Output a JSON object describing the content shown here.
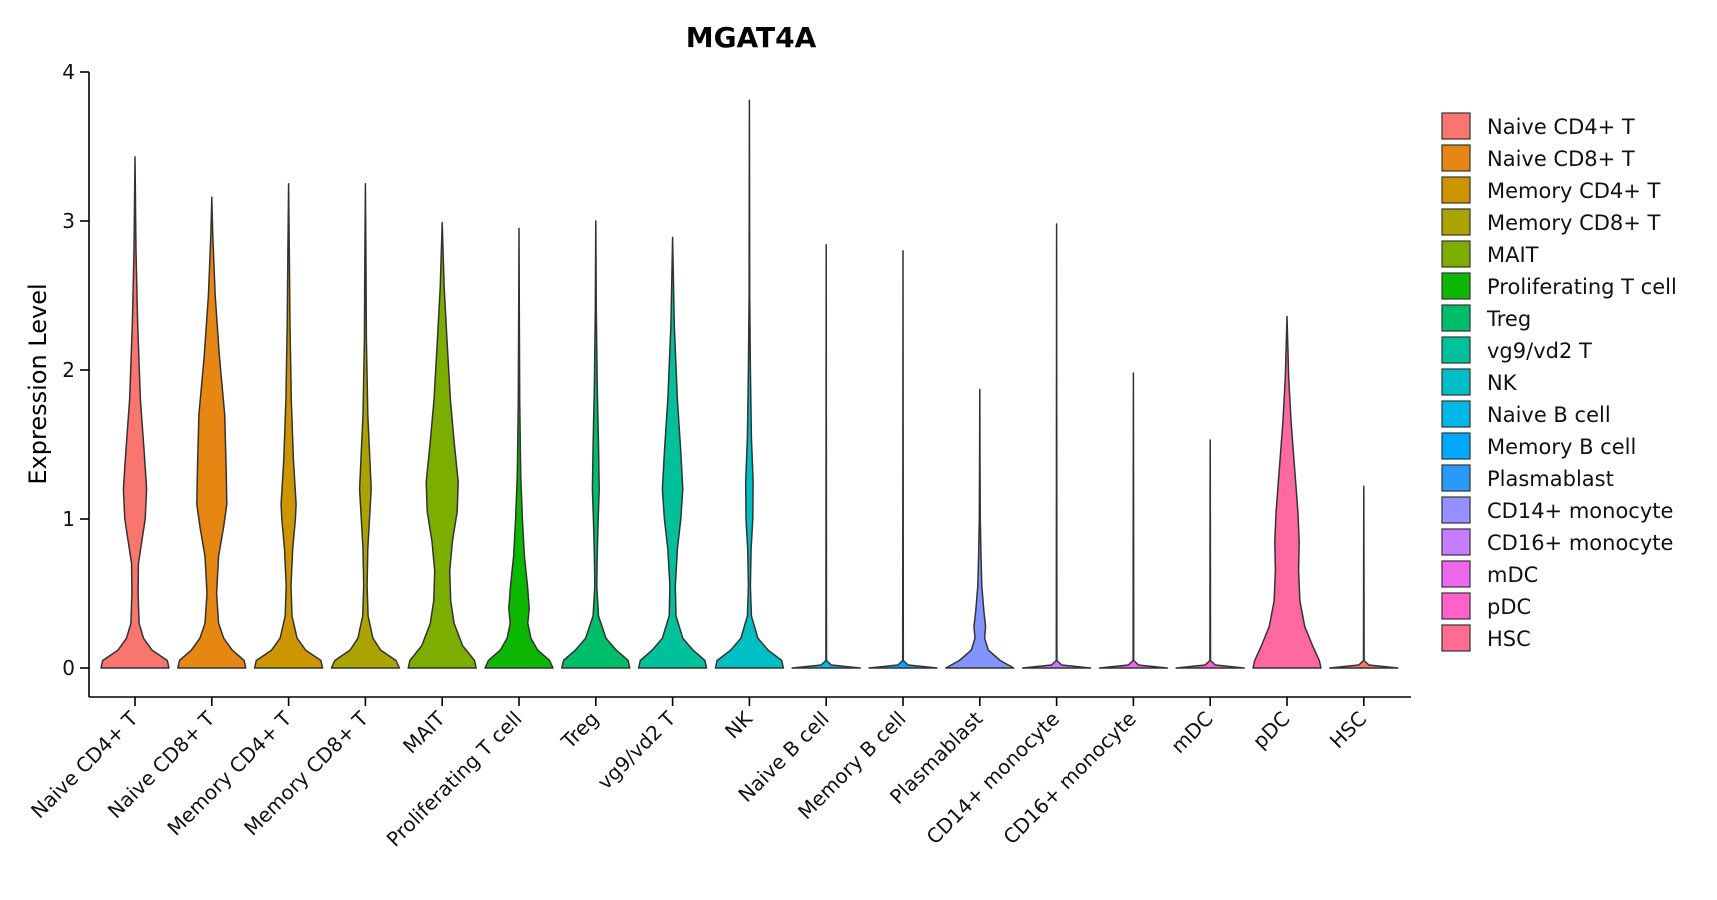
{
  "chart_data": {
    "type": "violin",
    "title": "MGAT4A",
    "xlabel": "",
    "ylabel": "Expression Level",
    "ylim": [
      0,
      4
    ],
    "yticks": [
      0,
      1,
      2,
      3,
      4
    ],
    "legend_position": "right",
    "categories": [
      "Naive CD4+ T",
      "Naive CD8+ T",
      "Memory CD4+ T",
      "Memory CD8+ T",
      "MAIT",
      "Proliferating T cell",
      "Treg",
      "vg9/vd2 T",
      "NK",
      "Naive B cell",
      "Memory B cell",
      "Plasmablast",
      "CD14+ monocyte",
      "CD16+ monocyte",
      "mDC",
      "pDC",
      "HSC"
    ],
    "colors": [
      "#F8766D",
      "#E68613",
      "#CD9600",
      "#ABA300",
      "#7CAE00",
      "#0CB702",
      "#00BE67",
      "#00C19A",
      "#00BFC4",
      "#00B8E7",
      "#00A9FF",
      "#8494FF",
      "#C77CFF",
      "#ED68ED",
      "#FF61CC",
      "#FF68A1",
      "#F8766D"
    ],
    "legend_colors": [
      "#F8766D",
      "#E68613",
      "#CD9600",
      "#ABA300",
      "#7CAE00",
      "#0CB702",
      "#00BE67",
      "#00C19A",
      "#00BFC4",
      "#00B8E7",
      "#00A9FF",
      "#2B9AF7",
      "#9590FF",
      "#C77CFF",
      "#ED68ED",
      "#FF61CC",
      "#FF6C91"
    ],
    "max_values": [
      3.43,
      3.16,
      3.25,
      3.25,
      2.99,
      2.95,
      3.0,
      2.89,
      3.81,
      2.84,
      2.8,
      1.87,
      2.98,
      1.98,
      1.53,
      2.36,
      1.22
    ],
    "violin_profiles": [
      [
        [
          0,
          1.0
        ],
        [
          0.05,
          0.95
        ],
        [
          0.12,
          0.5
        ],
        [
          0.2,
          0.25
        ],
        [
          0.3,
          0.12
        ],
        [
          0.5,
          0.09
        ],
        [
          0.7,
          0.1
        ],
        [
          0.85,
          0.2
        ],
        [
          1.0,
          0.3
        ],
        [
          1.2,
          0.34
        ],
        [
          1.45,
          0.27
        ],
        [
          1.8,
          0.16
        ],
        [
          2.3,
          0.08
        ],
        [
          2.8,
          0.03
        ],
        [
          3.43,
          0
        ]
      ],
      [
        [
          0,
          1.0
        ],
        [
          0.05,
          0.95
        ],
        [
          0.12,
          0.6
        ],
        [
          0.2,
          0.35
        ],
        [
          0.3,
          0.2
        ],
        [
          0.5,
          0.14
        ],
        [
          0.75,
          0.2
        ],
        [
          0.95,
          0.35
        ],
        [
          1.1,
          0.44
        ],
        [
          1.35,
          0.42
        ],
        [
          1.7,
          0.38
        ],
        [
          2.1,
          0.22
        ],
        [
          2.5,
          0.1
        ],
        [
          2.9,
          0.03
        ],
        [
          3.16,
          0
        ]
      ],
      [
        [
          0,
          1.0
        ],
        [
          0.05,
          0.95
        ],
        [
          0.12,
          0.5
        ],
        [
          0.2,
          0.25
        ],
        [
          0.35,
          0.1
        ],
        [
          0.55,
          0.07
        ],
        [
          0.8,
          0.12
        ],
        [
          1.0,
          0.2
        ],
        [
          1.1,
          0.22
        ],
        [
          1.4,
          0.14
        ],
        [
          1.8,
          0.08
        ],
        [
          2.3,
          0.04
        ],
        [
          2.8,
          0.02
        ],
        [
          3.25,
          0
        ]
      ],
      [
        [
          0,
          1.0
        ],
        [
          0.05,
          0.9
        ],
        [
          0.12,
          0.45
        ],
        [
          0.2,
          0.22
        ],
        [
          0.35,
          0.08
        ],
        [
          0.55,
          0.05
        ],
        [
          0.8,
          0.07
        ],
        [
          1.0,
          0.12
        ],
        [
          1.2,
          0.17
        ],
        [
          1.35,
          0.14
        ],
        [
          1.7,
          0.07
        ],
        [
          2.2,
          0.03
        ],
        [
          2.8,
          0.015
        ],
        [
          3.25,
          0
        ]
      ],
      [
        [
          0,
          1.0
        ],
        [
          0.05,
          0.95
        ],
        [
          0.15,
          0.6
        ],
        [
          0.3,
          0.35
        ],
        [
          0.45,
          0.25
        ],
        [
          0.65,
          0.22
        ],
        [
          0.85,
          0.3
        ],
        [
          1.05,
          0.44
        ],
        [
          1.25,
          0.47
        ],
        [
          1.5,
          0.36
        ],
        [
          1.8,
          0.24
        ],
        [
          2.2,
          0.14
        ],
        [
          2.55,
          0.06
        ],
        [
          2.99,
          0
        ]
      ],
      [
        [
          0,
          1.0
        ],
        [
          0.05,
          0.9
        ],
        [
          0.12,
          0.55
        ],
        [
          0.2,
          0.35
        ],
        [
          0.3,
          0.26
        ],
        [
          0.4,
          0.3
        ],
        [
          0.55,
          0.25
        ],
        [
          0.75,
          0.16
        ],
        [
          1.0,
          0.1
        ],
        [
          1.3,
          0.05
        ],
        [
          1.8,
          0.02
        ],
        [
          2.4,
          0.01
        ],
        [
          2.95,
          0
        ]
      ],
      [
        [
          0,
          1.0
        ],
        [
          0.05,
          0.95
        ],
        [
          0.12,
          0.6
        ],
        [
          0.2,
          0.3
        ],
        [
          0.35,
          0.08
        ],
        [
          0.55,
          0.03
        ],
        [
          0.75,
          0.04
        ],
        [
          1.0,
          0.07
        ],
        [
          1.2,
          0.1
        ],
        [
          1.5,
          0.08
        ],
        [
          1.9,
          0.04
        ],
        [
          2.4,
          0.015
        ],
        [
          3.0,
          0
        ]
      ],
      [
        [
          0,
          1.0
        ],
        [
          0.05,
          0.95
        ],
        [
          0.12,
          0.6
        ],
        [
          0.2,
          0.3
        ],
        [
          0.35,
          0.1
        ],
        [
          0.55,
          0.08
        ],
        [
          0.8,
          0.14
        ],
        [
          1.0,
          0.24
        ],
        [
          1.2,
          0.3
        ],
        [
          1.45,
          0.24
        ],
        [
          1.8,
          0.14
        ],
        [
          2.3,
          0.05
        ],
        [
          2.89,
          0
        ]
      ],
      [
        [
          0,
          1.0
        ],
        [
          0.05,
          0.95
        ],
        [
          0.12,
          0.55
        ],
        [
          0.2,
          0.25
        ],
        [
          0.35,
          0.06
        ],
        [
          0.55,
          0.03
        ],
        [
          0.8,
          0.05
        ],
        [
          1.0,
          0.1
        ],
        [
          1.25,
          0.11
        ],
        [
          1.55,
          0.06
        ],
        [
          2.0,
          0.03
        ],
        [
          2.5,
          0.01
        ],
        [
          3.0,
          0.005
        ],
        [
          3.81,
          0
        ]
      ],
      [
        [
          0,
          1.0
        ],
        [
          0.02,
          0.15
        ],
        [
          0.05,
          0.01
        ],
        [
          1.0,
          0.005
        ],
        [
          2.84,
          0
        ]
      ],
      [
        [
          0,
          1.0
        ],
        [
          0.02,
          0.15
        ],
        [
          0.05,
          0.01
        ],
        [
          1.0,
          0.005
        ],
        [
          2.8,
          0
        ]
      ],
      [
        [
          0,
          1.0
        ],
        [
          0.05,
          0.6
        ],
        [
          0.12,
          0.25
        ],
        [
          0.2,
          0.14
        ],
        [
          0.28,
          0.17
        ],
        [
          0.38,
          0.12
        ],
        [
          0.55,
          0.06
        ],
        [
          0.75,
          0.035
        ],
        [
          1.0,
          0.015
        ],
        [
          1.4,
          0.006
        ],
        [
          1.87,
          0
        ]
      ],
      [
        [
          0,
          1.0
        ],
        [
          0.02,
          0.15
        ],
        [
          0.05,
          0.01
        ],
        [
          1.0,
          0.005
        ],
        [
          2.98,
          0
        ]
      ],
      [
        [
          0,
          1.0
        ],
        [
          0.02,
          0.15
        ],
        [
          0.05,
          0.01
        ],
        [
          1.0,
          0.005
        ],
        [
          1.98,
          0
        ]
      ],
      [
        [
          0,
          1.0
        ],
        [
          0.02,
          0.15
        ],
        [
          0.05,
          0.01
        ],
        [
          0.8,
          0.005
        ],
        [
          1.53,
          0
        ]
      ],
      [
        [
          0,
          1.0
        ],
        [
          0.05,
          0.95
        ],
        [
          0.15,
          0.75
        ],
        [
          0.28,
          0.52
        ],
        [
          0.45,
          0.38
        ],
        [
          0.65,
          0.34
        ],
        [
          0.85,
          0.36
        ],
        [
          1.05,
          0.32
        ],
        [
          1.35,
          0.22
        ],
        [
          1.65,
          0.12
        ],
        [
          1.95,
          0.05
        ],
        [
          2.36,
          0
        ]
      ],
      [
        [
          0,
          1.0
        ],
        [
          0.02,
          0.15
        ],
        [
          0.05,
          0.01
        ],
        [
          0.6,
          0.005
        ],
        [
          1.22,
          0
        ]
      ]
    ]
  }
}
